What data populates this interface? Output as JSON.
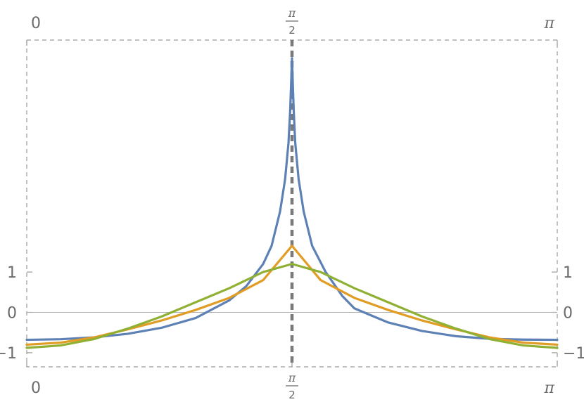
{
  "chart_data": {
    "type": "line",
    "title": "",
    "xlabel": "",
    "ylabel": "",
    "x_range": [
      0,
      3.14159
    ],
    "y_range": [
      -1.35,
      6.75
    ],
    "x_ticks": [
      {
        "value": 0,
        "label": "0"
      },
      {
        "value": 1.5708,
        "label": "π/2",
        "num": "π",
        "den": "2"
      },
      {
        "value": 3.14159,
        "label": "π"
      }
    ],
    "y_ticks": [
      {
        "value": -1,
        "label": "−1"
      },
      {
        "value": 0,
        "label": "0"
      },
      {
        "value": 1,
        "label": "1"
      }
    ],
    "frame": "dashed",
    "center_line": {
      "x": 1.5708,
      "style": "dashed"
    },
    "zero_line": true,
    "series": [
      {
        "color": "#5e81b5",
        "x": [
          0,
          0.2,
          0.4,
          0.6,
          0.8,
          1.0,
          1.2,
          1.3,
          1.4,
          1.45,
          1.5,
          1.53,
          1.55,
          1.56,
          1.565,
          1.5708,
          1.576,
          1.581,
          1.59,
          1.61,
          1.64,
          1.69,
          1.77,
          1.87,
          1.94,
          2.14,
          2.34,
          2.54,
          2.74,
          2.94,
          3.14159
        ],
        "y": [
          -0.68,
          -0.665,
          -0.62,
          -0.53,
          -0.38,
          -0.14,
          0.3,
          0.65,
          1.2,
          1.65,
          2.5,
          3.3,
          4.2,
          5.0,
          5.6,
          6.3,
          5.6,
          5.0,
          4.2,
          3.3,
          2.5,
          1.65,
          1.0,
          0.4,
          0.1,
          -0.25,
          -0.46,
          -0.59,
          -0.655,
          -0.675,
          -0.68
        ]
      },
      {
        "color": "#e19c24",
        "x": [
          0,
          0.2,
          0.4,
          0.6,
          0.8,
          1.0,
          1.2,
          1.4,
          1.5708,
          1.74,
          1.94,
          2.14,
          2.34,
          2.54,
          2.74,
          2.94,
          3.14159
        ],
        "y": [
          -0.8,
          -0.75,
          -0.62,
          -0.42,
          -0.2,
          0.06,
          0.36,
          0.8,
          1.65,
          0.8,
          0.36,
          0.06,
          -0.2,
          -0.42,
          -0.62,
          -0.75,
          -0.8
        ]
      },
      {
        "color": "#8fb032",
        "x": [
          0,
          0.2,
          0.4,
          0.6,
          0.8,
          1.0,
          1.2,
          1.4,
          1.5708,
          1.74,
          1.94,
          2.14,
          2.34,
          2.54,
          2.74,
          2.94,
          3.14159
        ],
        "y": [
          -0.88,
          -0.82,
          -0.66,
          -0.4,
          -0.1,
          0.25,
          0.6,
          1.0,
          1.2,
          1.0,
          0.6,
          0.25,
          -0.1,
          -0.4,
          -0.66,
          -0.82,
          -0.88
        ]
      }
    ]
  }
}
